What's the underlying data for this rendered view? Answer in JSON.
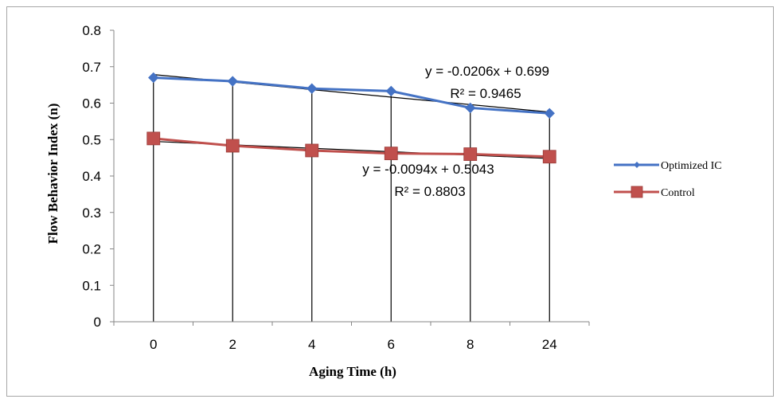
{
  "chart_data": {
    "type": "line",
    "title": "",
    "xlabel": "Aging Time (h)",
    "ylabel": "Flow Behavior Index (n)",
    "categories": [
      "0",
      "2",
      "4",
      "6",
      "8",
      "24"
    ],
    "ylim": [
      0,
      0.8
    ],
    "y_ticks": [
      "0",
      "0.1",
      "0.2",
      "0.3",
      "0.4",
      "0.5",
      "0.6",
      "0.7",
      "0.8"
    ],
    "grid": false,
    "drop_lines": true,
    "legend_position": "right",
    "series": [
      {
        "name": "Optimized IC",
        "color": "#4472c4",
        "marker": "diamond",
        "values": [
          0.67,
          0.66,
          0.64,
          0.633,
          0.587,
          0.572
        ]
      },
      {
        "name": "Control",
        "color": "#c0504d",
        "marker": "square",
        "values": [
          0.503,
          0.483,
          0.47,
          0.462,
          0.46,
          0.453
        ]
      }
    ],
    "trendlines": [
      {
        "series": "Optimized IC",
        "slope": -0.0206,
        "intercept": 0.699,
        "color": "#000000"
      },
      {
        "series": "Control",
        "slope": -0.0094,
        "intercept": 0.5043,
        "color": "#000000"
      }
    ],
    "annotations": [
      {
        "series": "Optimized IC",
        "equation": "y = -0.0206x + 0.699",
        "r2": "R² = 0.9465"
      },
      {
        "series": "Control",
        "equation": "y = -0.0094x + 0.5043",
        "r2": "R² = 0.8803"
      }
    ]
  }
}
